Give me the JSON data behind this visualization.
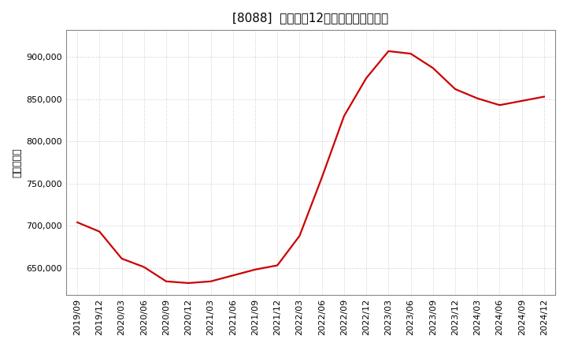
{
  "title": "[8088]  売上高の12か月移動合計の推移",
  "ylabel": "（百万円）",
  "line_color": "#cc0000",
  "background_color": "#ffffff",
  "plot_bg_color": "#ffffff",
  "grid_color": "#bbbbbb",
  "dates": [
    "2019/09",
    "2019/12",
    "2020/03",
    "2020/06",
    "2020/09",
    "2020/12",
    "2021/03",
    "2021/06",
    "2021/09",
    "2021/12",
    "2022/03",
    "2022/06",
    "2022/09",
    "2022/12",
    "2023/03",
    "2023/06",
    "2023/09",
    "2023/12",
    "2024/03",
    "2024/06",
    "2024/09",
    "2024/12"
  ],
  "values": [
    704000,
    693000,
    661000,
    651000,
    634000,
    632000,
    634000,
    641000,
    648000,
    653000,
    688000,
    757000,
    830000,
    875000,
    907000,
    904000,
    887000,
    862000,
    851000,
    843000,
    848000,
    853000
  ],
  "yticks": [
    650000,
    700000,
    750000,
    800000,
    850000,
    900000
  ],
  "ylim": [
    618000,
    932000
  ],
  "line_width": 1.6,
  "title_fontsize": 11,
  "tick_fontsize": 8,
  "ylabel_fontsize": 9
}
